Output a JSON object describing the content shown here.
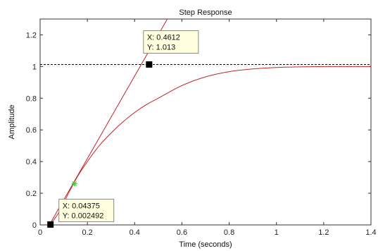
{
  "chart_data": {
    "type": "line",
    "title": "Step Response",
    "xlabel": "Time (seconds)",
    "ylabel": "Amplitude",
    "xlim": [
      0,
      1.4
    ],
    "ylim": [
      0,
      1.3
    ],
    "x_ticks": [
      "0",
      "0.2",
      "0.4",
      "0.6",
      "0.8",
      "1",
      "1.2",
      "1.4"
    ],
    "y_ticks": [
      "0",
      "0.2",
      "0.4",
      "0.6",
      "0.8",
      "1",
      "1.2"
    ],
    "x_tick_values": [
      0,
      0.2,
      0.4,
      0.6,
      0.8,
      1,
      1.2,
      1.4
    ],
    "y_tick_values": [
      0,
      0.2,
      0.4,
      0.6,
      0.8,
      1,
      1.2
    ],
    "grid": false,
    "series": [
      {
        "kind": "step-response",
        "color": "#c0242a",
        "x": [
          0,
          0.04,
          0.08,
          0.12,
          0.16,
          0.2,
          0.25,
          0.3,
          0.35,
          0.4,
          0.45,
          0.5,
          0.6,
          0.7,
          0.8,
          0.9,
          1.0,
          1.1,
          1.2,
          1.3,
          1.4
        ],
        "y": [
          0,
          0.005,
          0.08,
          0.2,
          0.31,
          0.4,
          0.5,
          0.58,
          0.65,
          0.71,
          0.76,
          0.8,
          0.88,
          0.935,
          0.968,
          0.985,
          0.994,
          0.998,
          1.0,
          1.0,
          1.0
        ]
      },
      {
        "kind": "tangent-line",
        "color": "#c0242a",
        "x": [
          0.0,
          0.538
        ],
        "y": [
          -0.102,
          1.3
        ]
      },
      {
        "kind": "steady-state-reference",
        "color": "#000000",
        "dashed": true,
        "x": [
          0,
          1.4
        ],
        "y": [
          1.013,
          1.013
        ]
      }
    ],
    "markers": [
      {
        "kind": "green-star",
        "color": "#44cc33",
        "x": 0.145,
        "y": 0.26
      }
    ],
    "datatips": [
      {
        "x": 0.04375,
        "y": 0.002492,
        "x_text": "X: 0.04375",
        "y_text": "Y: 0.002492",
        "placement": "below-right"
      },
      {
        "x": 0.4612,
        "y": 1.013,
        "x_text": "X: 0.4612",
        "y_text": "Y: 1.013",
        "placement": "above"
      }
    ]
  }
}
